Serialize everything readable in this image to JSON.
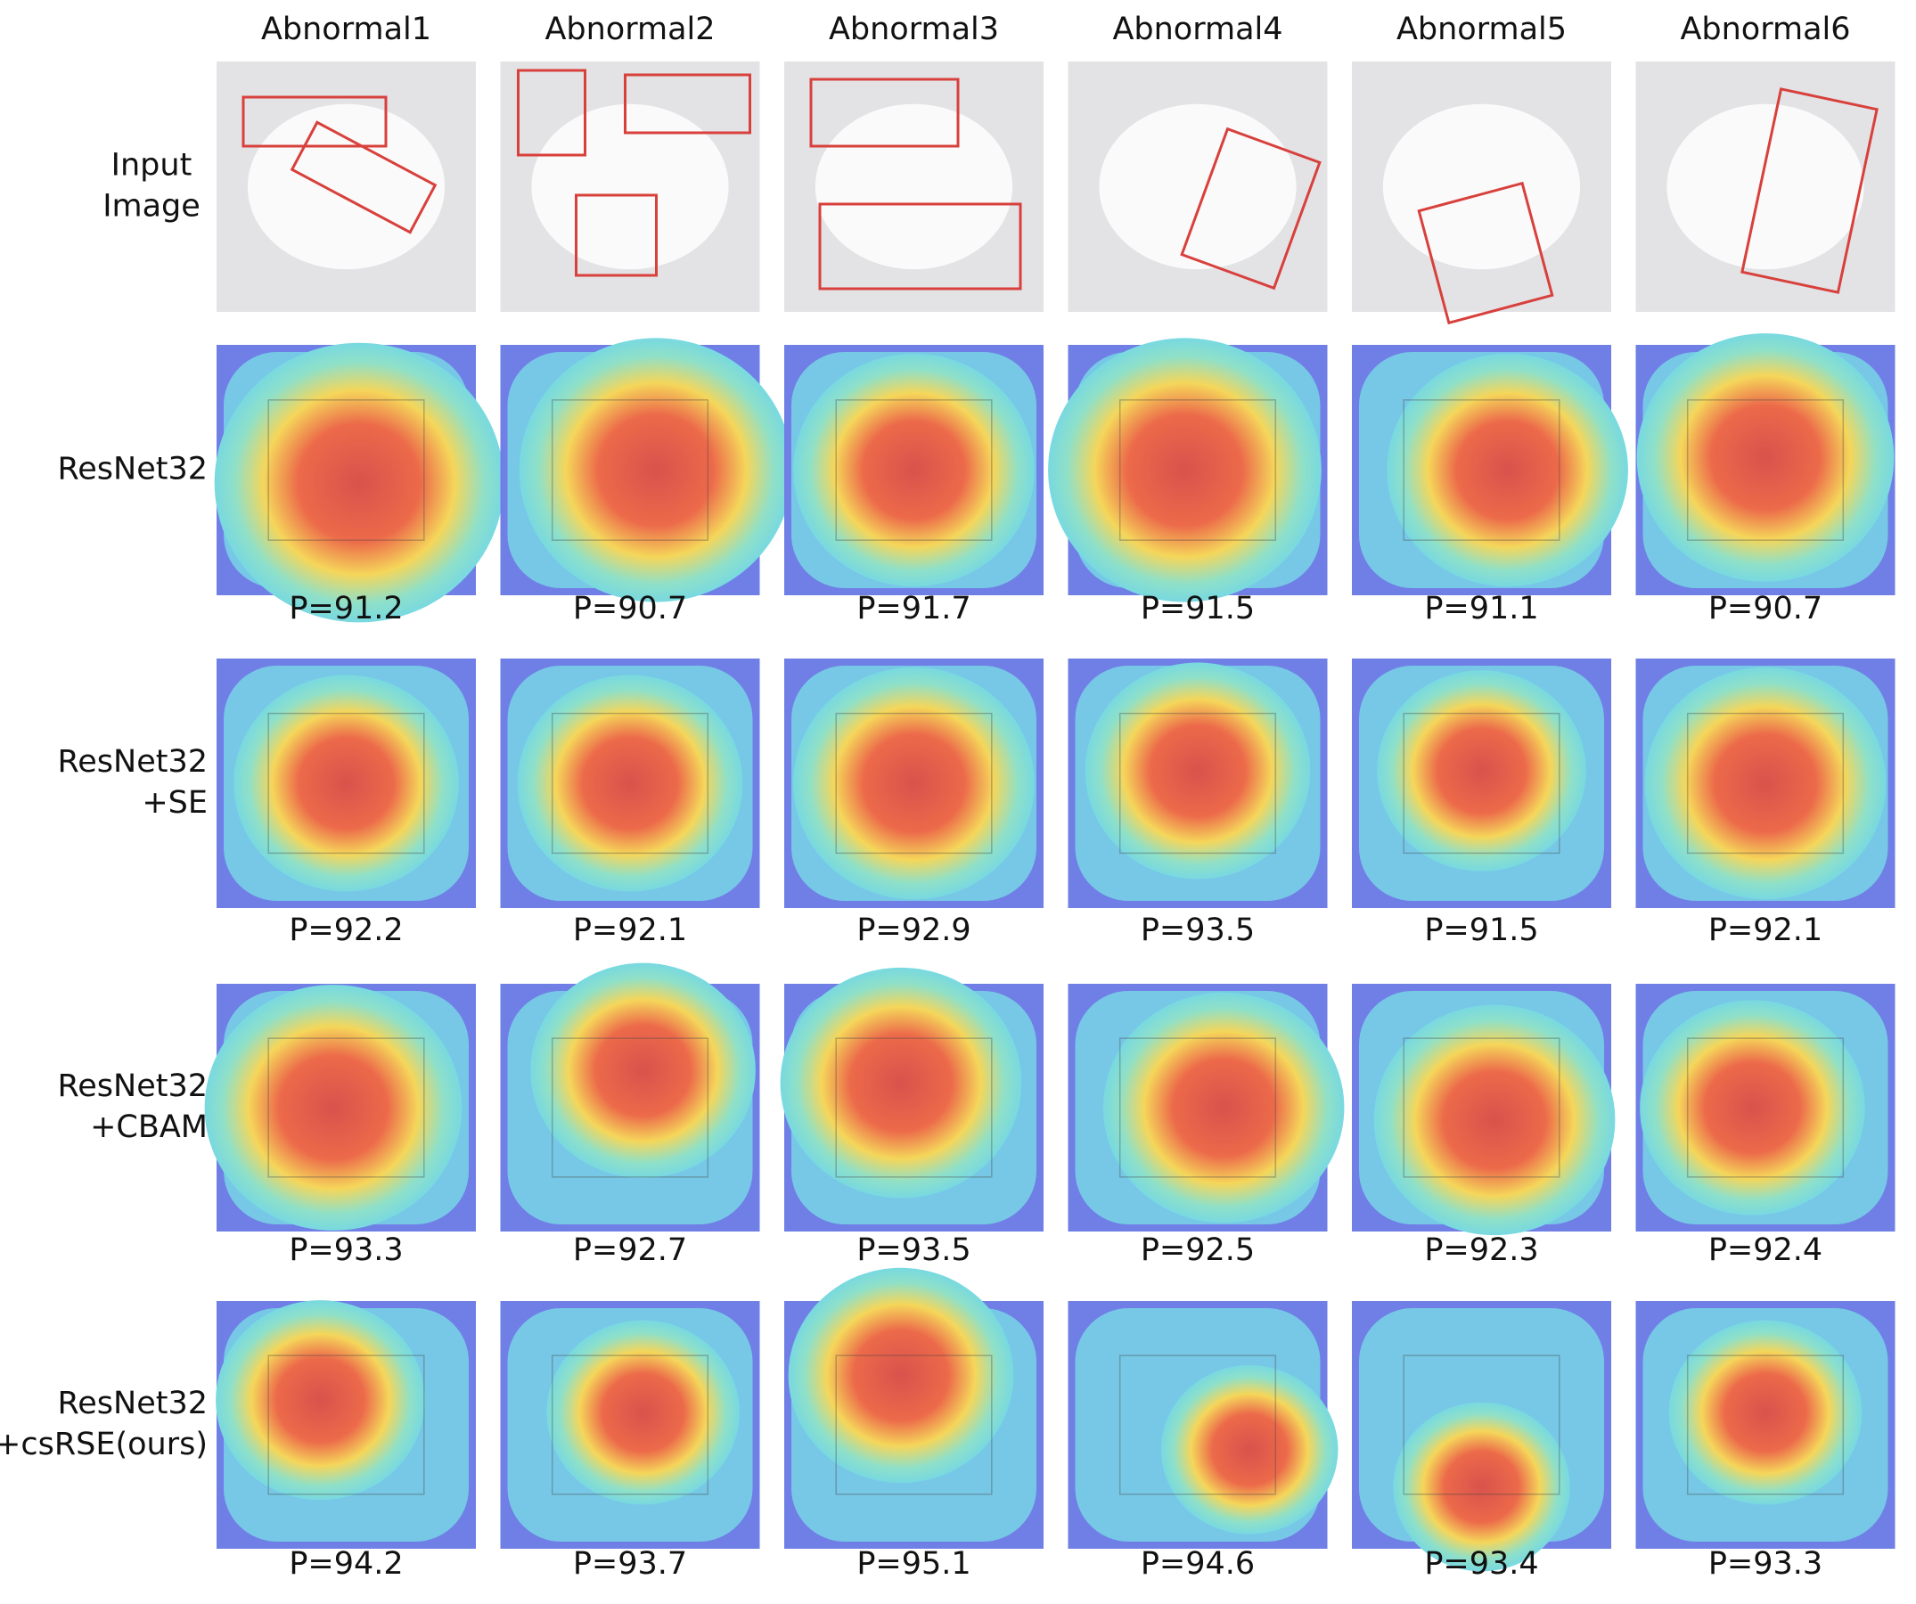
{
  "columns": [
    "Abnormal1",
    "Abnormal2",
    "Abnormal3",
    "Abnormal4",
    "Abnormal5",
    "Abnormal6"
  ],
  "rows": [
    {
      "label": [
        "Input",
        "Image"
      ]
    },
    {
      "label": [
        "ResNet32"
      ],
      "scores": [
        "P=91.2",
        "P=90.7",
        "P=91.7",
        "P=91.5",
        "P=91.1",
        "P=90.7"
      ]
    },
    {
      "label": [
        "ResNet32",
        "+SE"
      ],
      "scores": [
        "P=92.2",
        "P=92.1",
        "P=92.9",
        "P=93.5",
        "P=91.5",
        "P=92.1"
      ]
    },
    {
      "label": [
        "ResNet32",
        "+CBAM"
      ],
      "scores": [
        "P=93.3",
        "P=92.7",
        "P=93.5",
        "P=92.5",
        "P=92.3",
        "P=92.4"
      ]
    },
    {
      "label": [
        "ResNet32",
        "+csRSE(ours)"
      ],
      "scores": [
        "P=94.2",
        "P=93.7",
        "P=95.1",
        "P=94.6",
        "P=93.4",
        "P=93.3"
      ]
    }
  ]
}
